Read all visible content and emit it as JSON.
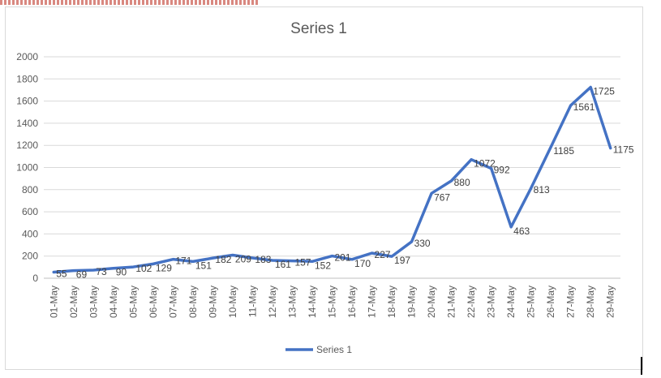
{
  "chart_data": {
    "type": "line",
    "title": "Series 1",
    "xlabel": "",
    "ylabel": "",
    "ylim": [
      0,
      2000
    ],
    "yticks": [
      0,
      200,
      400,
      600,
      800,
      1000,
      1200,
      1400,
      1600,
      1800,
      2000
    ],
    "grid": true,
    "legend_position": "bottom",
    "series_color": "#4472C4",
    "categories": [
      "01-May",
      "02-May",
      "03-May",
      "04-May",
      "05-May",
      "06-May",
      "07-May",
      "08-May",
      "09-May",
      "10-May",
      "11-May",
      "12-May",
      "13-May",
      "14-May",
      "15-May",
      "16-May",
      "17-May",
      "18-May",
      "19-May",
      "20-May",
      "21-May",
      "22-May",
      "23-May",
      "24-May",
      "25-May",
      "26-May",
      "27-May",
      "28-May",
      "29-May"
    ],
    "series": [
      {
        "name": "Series 1",
        "values": [
          55,
          69,
          73,
          90,
          102,
          129,
          171,
          151,
          182,
          209,
          183,
          161,
          157,
          152,
          201,
          170,
          227,
          197,
          330,
          767,
          880,
          1072,
          992,
          463,
          813,
          1185,
          1561,
          1725,
          1175
        ]
      }
    ]
  }
}
